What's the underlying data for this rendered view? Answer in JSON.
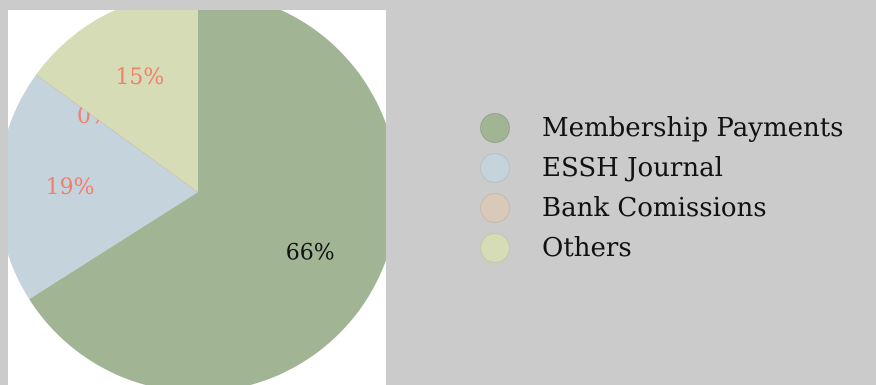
{
  "chart_data": {
    "type": "pie",
    "categories": [
      "Membership Payments",
      "ESSH Journal",
      "Bank Comissions",
      "Others"
    ],
    "values": [
      66,
      19,
      0,
      15
    ],
    "data_labels": [
      "66%",
      "19%",
      "0%",
      "15%"
    ],
    "colors": [
      "#a1b494",
      "#c5d3dc",
      "#d9c9b8",
      "#d6dcb5"
    ],
    "label_colors": [
      "#111111",
      "#f0806a",
      "#f0806a",
      "#f0806a"
    ],
    "legend_placement": "right",
    "title": "",
    "start_angle": "top",
    "direction": "clockwise"
  }
}
